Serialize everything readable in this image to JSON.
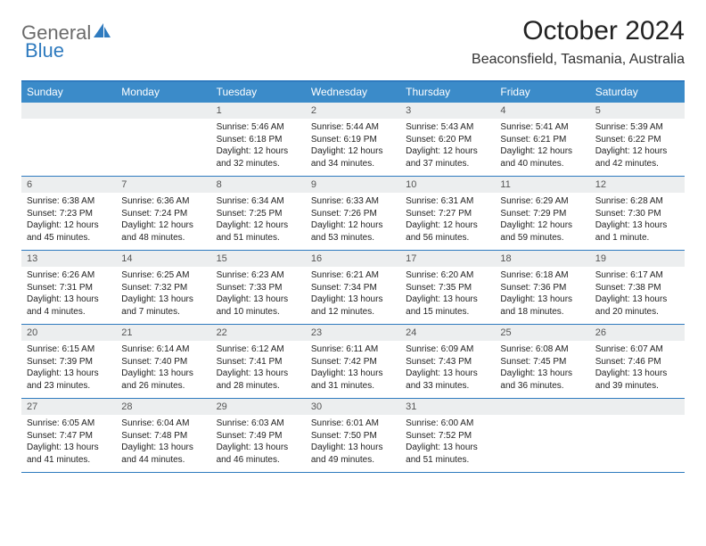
{
  "brand": {
    "part1": "General",
    "part2": "Blue"
  },
  "title": "October 2024",
  "location": "Beaconsfield, Tasmania, Australia",
  "colors": {
    "header_bg": "#3b8bc9",
    "accent": "#2f7bbf",
    "daynum_bg": "#eceeef",
    "text": "#222222",
    "logo_gray": "#6b6b6b"
  },
  "weekdays": [
    "Sunday",
    "Monday",
    "Tuesday",
    "Wednesday",
    "Thursday",
    "Friday",
    "Saturday"
  ],
  "weeks": [
    [
      {
        "blank": true
      },
      {
        "blank": true
      },
      {
        "day": "1",
        "sunrise": "Sunrise: 5:46 AM",
        "sunset": "Sunset: 6:18 PM",
        "daylight": "Daylight: 12 hours and 32 minutes."
      },
      {
        "day": "2",
        "sunrise": "Sunrise: 5:44 AM",
        "sunset": "Sunset: 6:19 PM",
        "daylight": "Daylight: 12 hours and 34 minutes."
      },
      {
        "day": "3",
        "sunrise": "Sunrise: 5:43 AM",
        "sunset": "Sunset: 6:20 PM",
        "daylight": "Daylight: 12 hours and 37 minutes."
      },
      {
        "day": "4",
        "sunrise": "Sunrise: 5:41 AM",
        "sunset": "Sunset: 6:21 PM",
        "daylight": "Daylight: 12 hours and 40 minutes."
      },
      {
        "day": "5",
        "sunrise": "Sunrise: 5:39 AM",
        "sunset": "Sunset: 6:22 PM",
        "daylight": "Daylight: 12 hours and 42 minutes."
      }
    ],
    [
      {
        "day": "6",
        "sunrise": "Sunrise: 6:38 AM",
        "sunset": "Sunset: 7:23 PM",
        "daylight": "Daylight: 12 hours and 45 minutes."
      },
      {
        "day": "7",
        "sunrise": "Sunrise: 6:36 AM",
        "sunset": "Sunset: 7:24 PM",
        "daylight": "Daylight: 12 hours and 48 minutes."
      },
      {
        "day": "8",
        "sunrise": "Sunrise: 6:34 AM",
        "sunset": "Sunset: 7:25 PM",
        "daylight": "Daylight: 12 hours and 51 minutes."
      },
      {
        "day": "9",
        "sunrise": "Sunrise: 6:33 AM",
        "sunset": "Sunset: 7:26 PM",
        "daylight": "Daylight: 12 hours and 53 minutes."
      },
      {
        "day": "10",
        "sunrise": "Sunrise: 6:31 AM",
        "sunset": "Sunset: 7:27 PM",
        "daylight": "Daylight: 12 hours and 56 minutes."
      },
      {
        "day": "11",
        "sunrise": "Sunrise: 6:29 AM",
        "sunset": "Sunset: 7:29 PM",
        "daylight": "Daylight: 12 hours and 59 minutes."
      },
      {
        "day": "12",
        "sunrise": "Sunrise: 6:28 AM",
        "sunset": "Sunset: 7:30 PM",
        "daylight": "Daylight: 13 hours and 1 minute."
      }
    ],
    [
      {
        "day": "13",
        "sunrise": "Sunrise: 6:26 AM",
        "sunset": "Sunset: 7:31 PM",
        "daylight": "Daylight: 13 hours and 4 minutes."
      },
      {
        "day": "14",
        "sunrise": "Sunrise: 6:25 AM",
        "sunset": "Sunset: 7:32 PM",
        "daylight": "Daylight: 13 hours and 7 minutes."
      },
      {
        "day": "15",
        "sunrise": "Sunrise: 6:23 AM",
        "sunset": "Sunset: 7:33 PM",
        "daylight": "Daylight: 13 hours and 10 minutes."
      },
      {
        "day": "16",
        "sunrise": "Sunrise: 6:21 AM",
        "sunset": "Sunset: 7:34 PM",
        "daylight": "Daylight: 13 hours and 12 minutes."
      },
      {
        "day": "17",
        "sunrise": "Sunrise: 6:20 AM",
        "sunset": "Sunset: 7:35 PM",
        "daylight": "Daylight: 13 hours and 15 minutes."
      },
      {
        "day": "18",
        "sunrise": "Sunrise: 6:18 AM",
        "sunset": "Sunset: 7:36 PM",
        "daylight": "Daylight: 13 hours and 18 minutes."
      },
      {
        "day": "19",
        "sunrise": "Sunrise: 6:17 AM",
        "sunset": "Sunset: 7:38 PM",
        "daylight": "Daylight: 13 hours and 20 minutes."
      }
    ],
    [
      {
        "day": "20",
        "sunrise": "Sunrise: 6:15 AM",
        "sunset": "Sunset: 7:39 PM",
        "daylight": "Daylight: 13 hours and 23 minutes."
      },
      {
        "day": "21",
        "sunrise": "Sunrise: 6:14 AM",
        "sunset": "Sunset: 7:40 PM",
        "daylight": "Daylight: 13 hours and 26 minutes."
      },
      {
        "day": "22",
        "sunrise": "Sunrise: 6:12 AM",
        "sunset": "Sunset: 7:41 PM",
        "daylight": "Daylight: 13 hours and 28 minutes."
      },
      {
        "day": "23",
        "sunrise": "Sunrise: 6:11 AM",
        "sunset": "Sunset: 7:42 PM",
        "daylight": "Daylight: 13 hours and 31 minutes."
      },
      {
        "day": "24",
        "sunrise": "Sunrise: 6:09 AM",
        "sunset": "Sunset: 7:43 PM",
        "daylight": "Daylight: 13 hours and 33 minutes."
      },
      {
        "day": "25",
        "sunrise": "Sunrise: 6:08 AM",
        "sunset": "Sunset: 7:45 PM",
        "daylight": "Daylight: 13 hours and 36 minutes."
      },
      {
        "day": "26",
        "sunrise": "Sunrise: 6:07 AM",
        "sunset": "Sunset: 7:46 PM",
        "daylight": "Daylight: 13 hours and 39 minutes."
      }
    ],
    [
      {
        "day": "27",
        "sunrise": "Sunrise: 6:05 AM",
        "sunset": "Sunset: 7:47 PM",
        "daylight": "Daylight: 13 hours and 41 minutes."
      },
      {
        "day": "28",
        "sunrise": "Sunrise: 6:04 AM",
        "sunset": "Sunset: 7:48 PM",
        "daylight": "Daylight: 13 hours and 44 minutes."
      },
      {
        "day": "29",
        "sunrise": "Sunrise: 6:03 AM",
        "sunset": "Sunset: 7:49 PM",
        "daylight": "Daylight: 13 hours and 46 minutes."
      },
      {
        "day": "30",
        "sunrise": "Sunrise: 6:01 AM",
        "sunset": "Sunset: 7:50 PM",
        "daylight": "Daylight: 13 hours and 49 minutes."
      },
      {
        "day": "31",
        "sunrise": "Sunrise: 6:00 AM",
        "sunset": "Sunset: 7:52 PM",
        "daylight": "Daylight: 13 hours and 51 minutes."
      },
      {
        "blank": true
      },
      {
        "blank": true
      }
    ]
  ]
}
